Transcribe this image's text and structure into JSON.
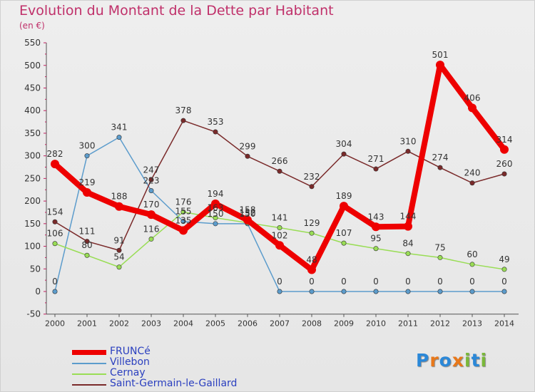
{
  "chart_data": {
    "type": "line",
    "title": "Evolution du Montant de la Dette par Habitant",
    "subtitle": "(en €)",
    "categories": [
      "2000",
      "2001",
      "2002",
      "2003",
      "2004",
      "2005",
      "2006",
      "2007",
      "2008",
      "2009",
      "2010",
      "2011",
      "2012",
      "2013",
      "2014"
    ],
    "ylim": [
      -50,
      550
    ],
    "yticks": [
      -50,
      0,
      50,
      100,
      150,
      200,
      250,
      300,
      350,
      400,
      450,
      500,
      550
    ],
    "grid": false,
    "legend_position": "bottom-left",
    "series": [
      {
        "name": "FRUNCé",
        "color": "#ee0000",
        "bold": true,
        "values": [
          282,
          219,
          188,
          170,
          135,
          194,
          158,
          102,
          48,
          189,
          143,
          144,
          501,
          406,
          314
        ]
      },
      {
        "name": "Villebon",
        "color": "#5c9ccc",
        "bold": false,
        "values": [
          0,
          300,
          341,
          223,
          155,
          150,
          150,
          0,
          0,
          0,
          0,
          0,
          0,
          0,
          0
        ]
      },
      {
        "name": "Cernay",
        "color": "#99dd55",
        "bold": false,
        "values": [
          106,
          80,
          54,
          116,
          176,
          163,
          152,
          141,
          129,
          107,
          95,
          84,
          75,
          60,
          49
        ]
      },
      {
        "name": "Saint-Germain-le-Gaillard",
        "color": "#7a2a2a",
        "bold": false,
        "values": [
          154,
          111,
          91,
          247,
          378,
          353,
          299,
          266,
          232,
          304,
          271,
          310,
          274,
          240,
          260
        ]
      }
    ]
  },
  "brand": {
    "name": "Proxiti",
    "letters": [
      "P",
      "r",
      "o",
      "x",
      "i",
      "t",
      "i"
    ],
    "colors": [
      "#2b88d8",
      "#e8781a",
      "#2b88d8",
      "#e8781a",
      "#7ab83a",
      "#2b88d8",
      "#7ab83a"
    ]
  }
}
